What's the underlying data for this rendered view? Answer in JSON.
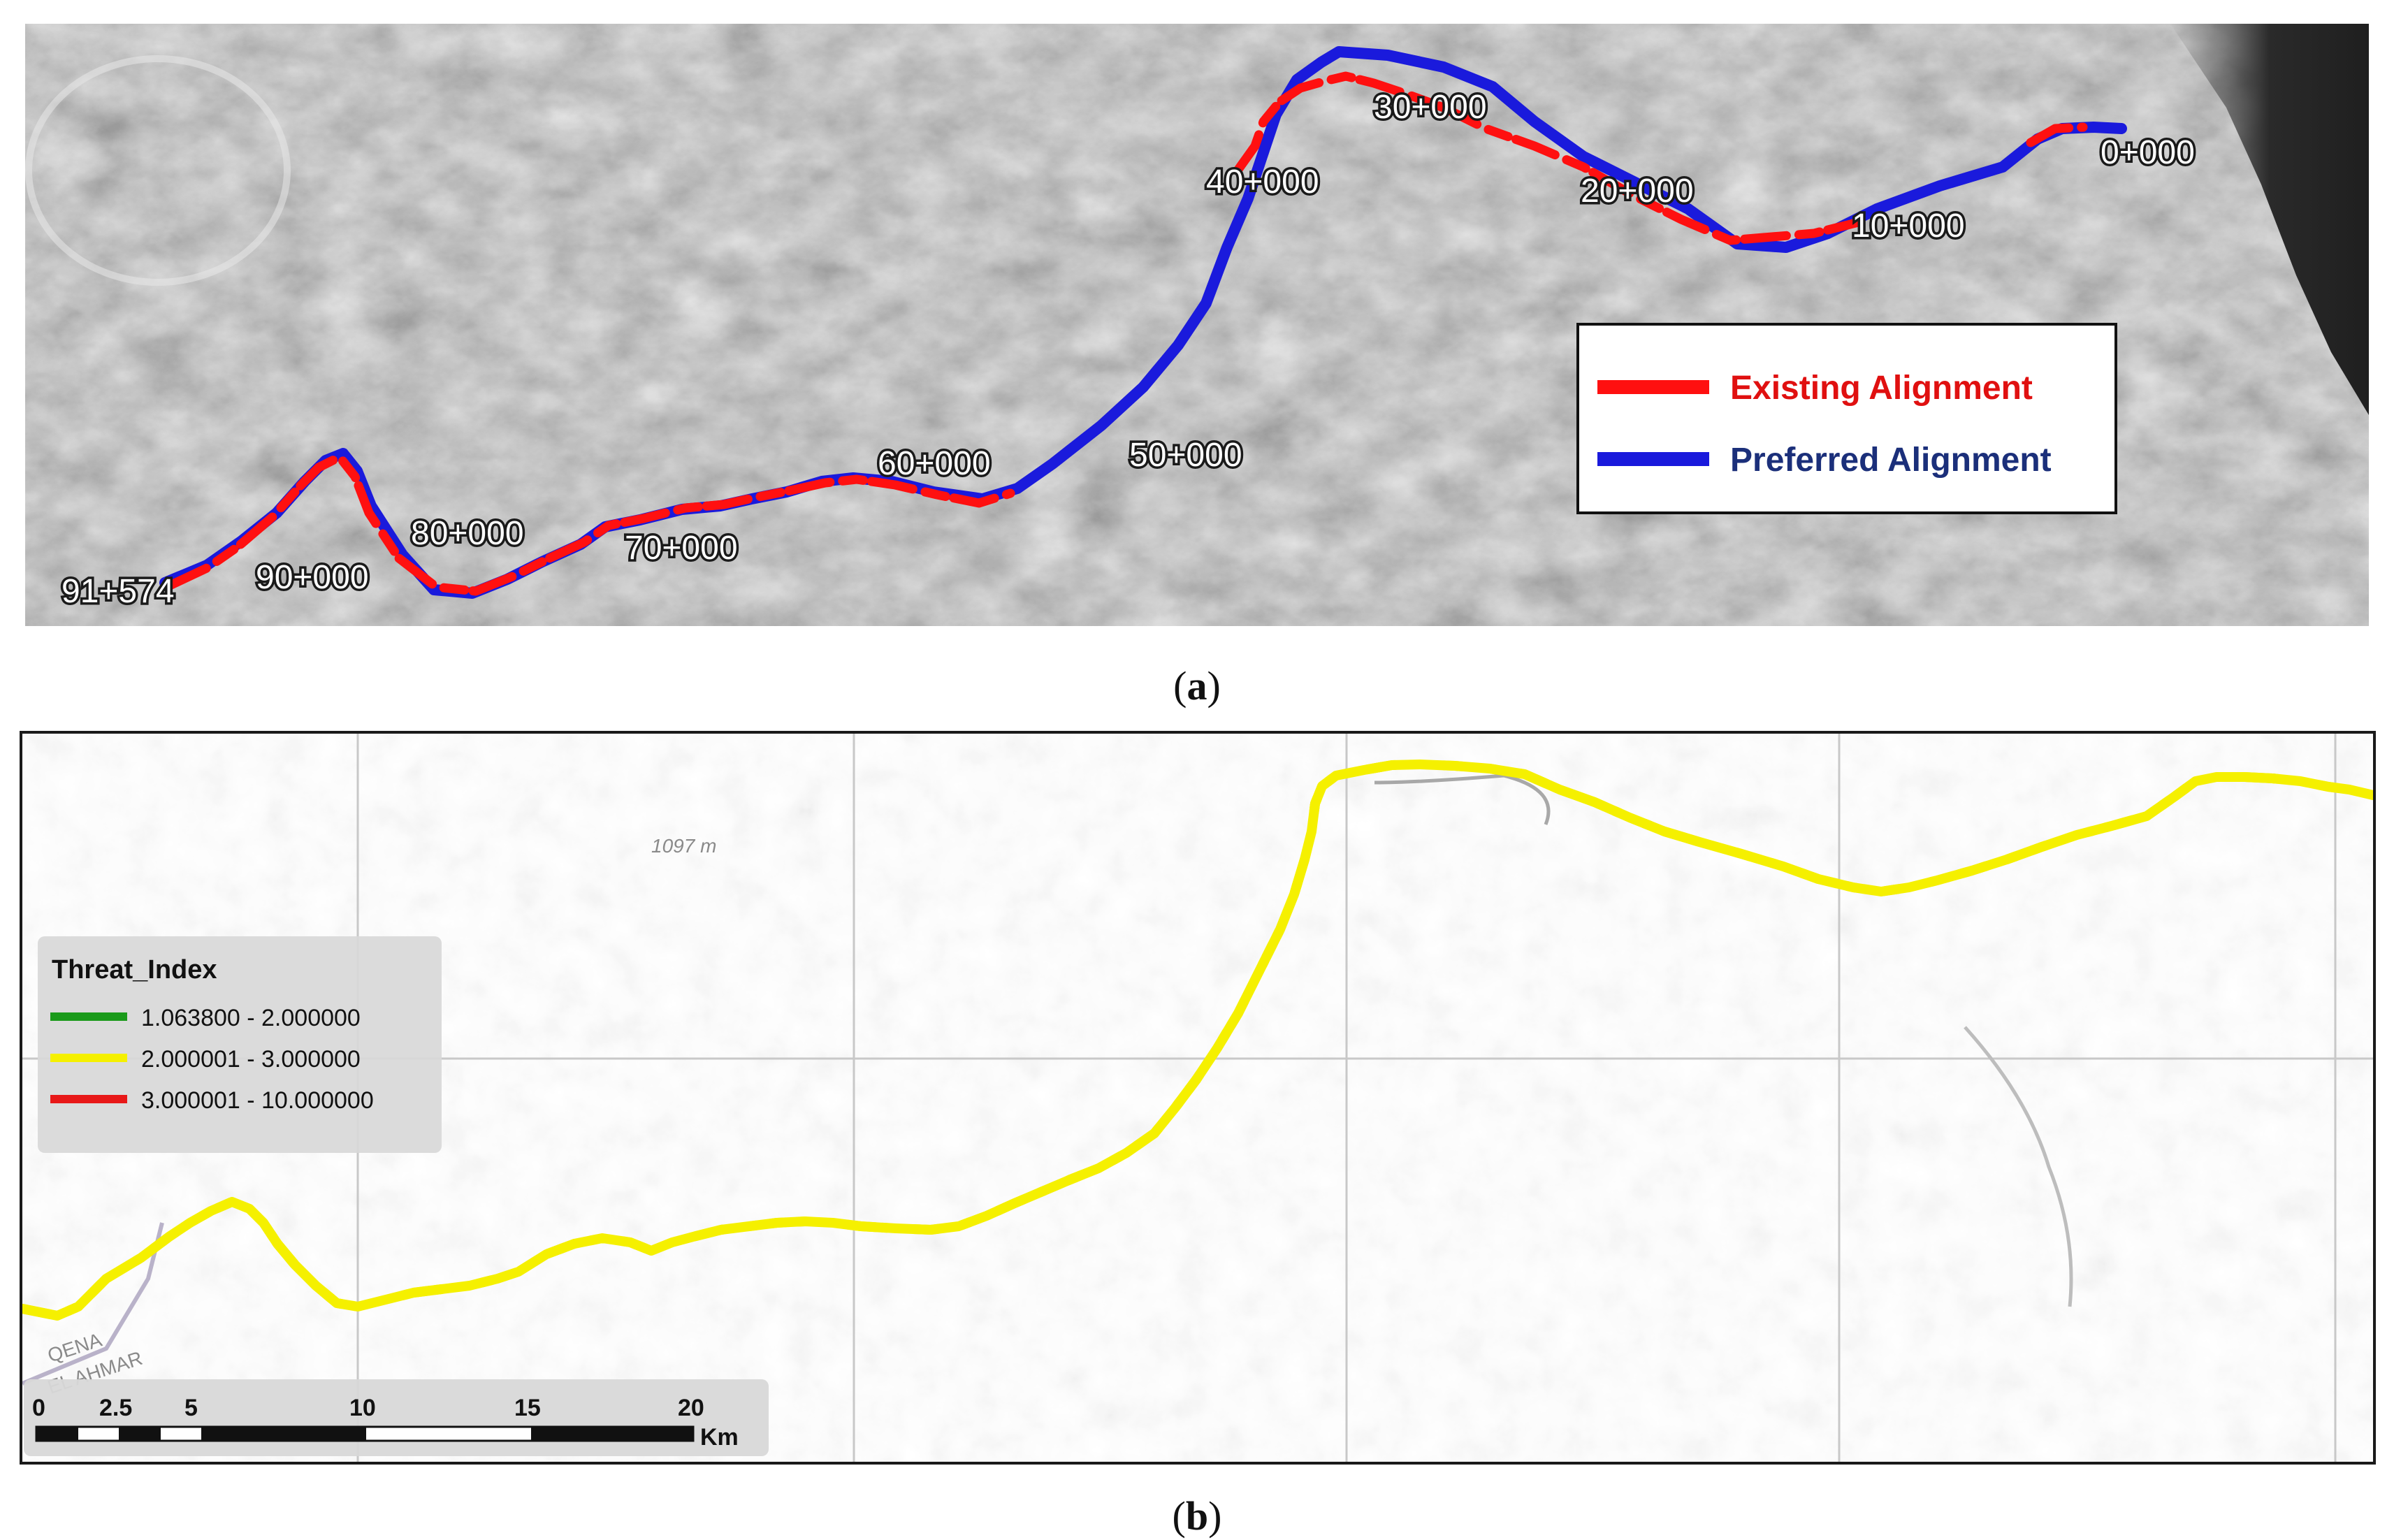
{
  "panel_a": {
    "caption_open": "(",
    "caption_letter": "a",
    "caption_close": ")",
    "chainage_labels": [
      "0+000",
      "10+000",
      "20+000",
      "30+000",
      "40+000",
      "50+000",
      "60+000",
      "70+000",
      "80+000",
      "90+000",
      "91+574"
    ],
    "legend": {
      "items": [
        {
          "label": "Existing Alignment",
          "color": "#ff1010"
        },
        {
          "label": "Preferred Alignment",
          "color": "#1a1adc"
        }
      ],
      "label_colors": [
        "#e01010",
        "#1b2f7a"
      ]
    }
  },
  "panel_b": {
    "caption_open": "(",
    "caption_letter": "b",
    "caption_close": ")",
    "elevation_label": "1097 m",
    "road_labels": [
      "QENA",
      "EL AHMAR"
    ],
    "legend": {
      "title": "Threat_Index",
      "items": [
        {
          "label": "1.063800 - 2.000000",
          "color": "#1a9a1a"
        },
        {
          "label": "2.000001 - 3.000000",
          "color": "#f5f000"
        },
        {
          "label": "3.000001 - 10.000000",
          "color": "#e81818"
        }
      ]
    },
    "scale_bar": {
      "ticks": [
        "0",
        "2.5",
        "5",
        "10",
        "15",
        "20"
      ],
      "unit": "Km"
    }
  }
}
